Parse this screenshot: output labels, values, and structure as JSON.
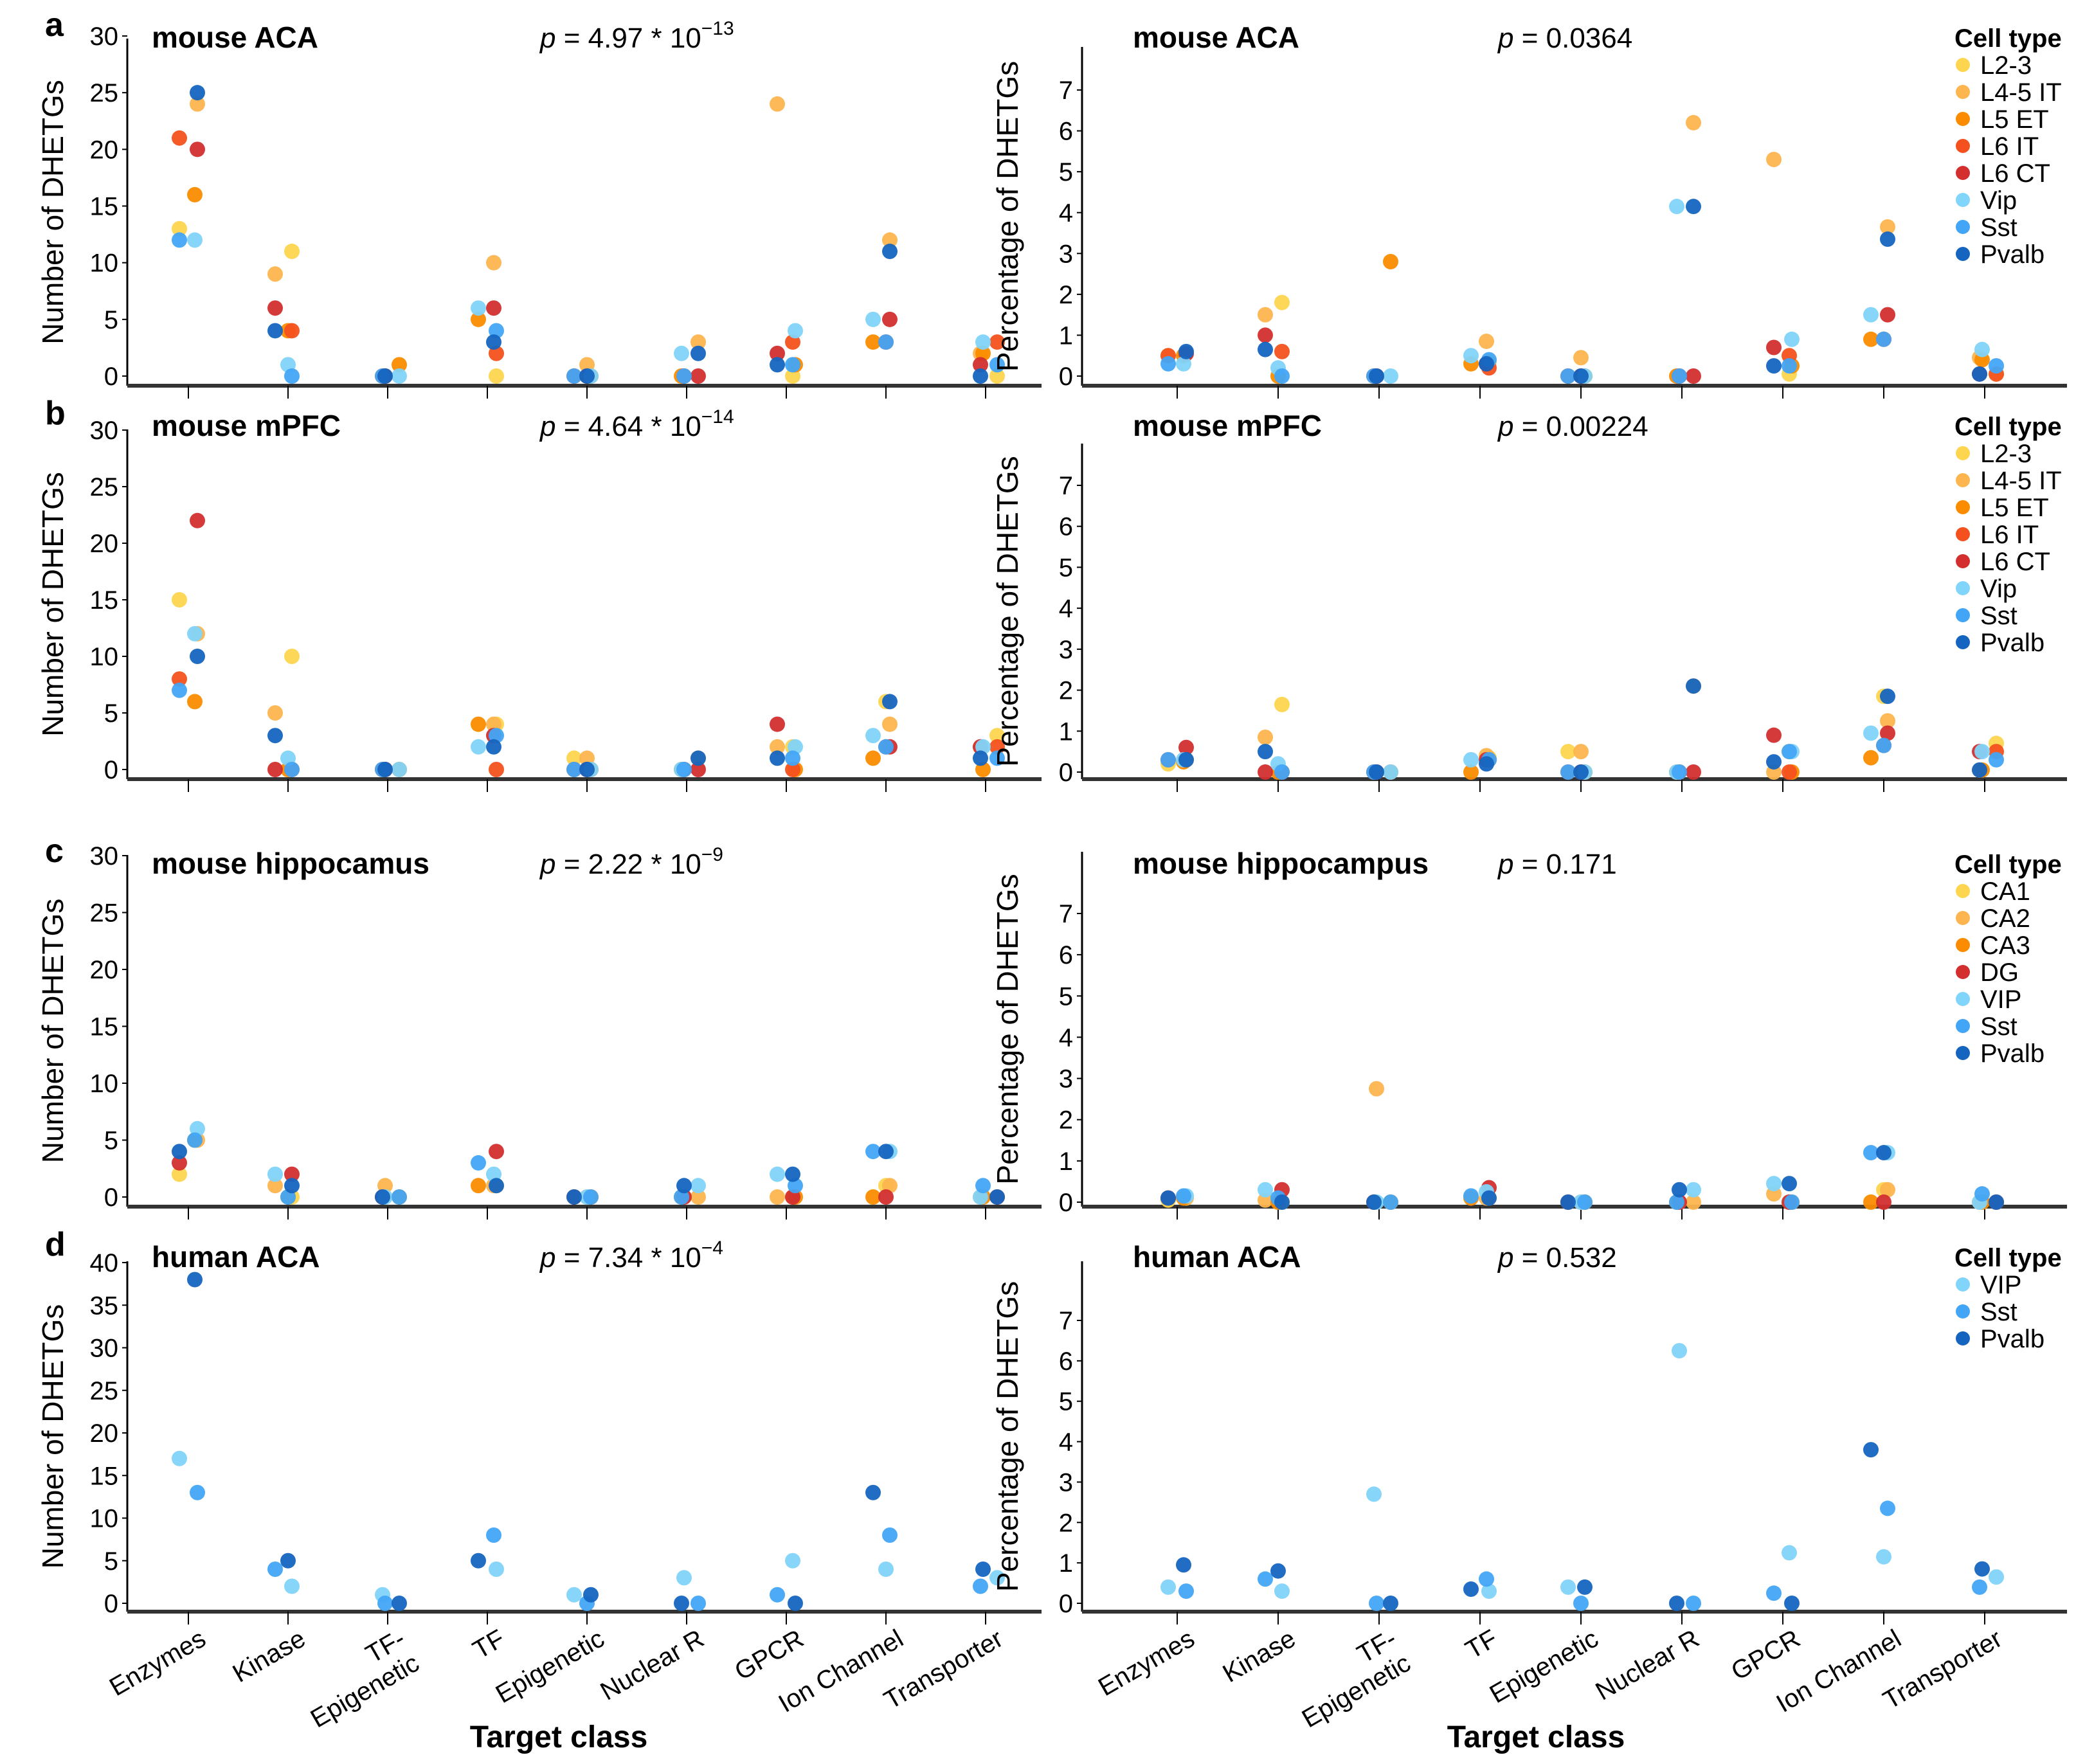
{
  "figure": {
    "panel_labels": [
      "a",
      "b",
      "c",
      "d"
    ],
    "x_axis_title": "Target class",
    "legend_title": "Cell type"
  },
  "colors": {
    "L2-3": "#FDD54F",
    "L4-5 IT": "#FDB54F",
    "L5 ET": "#FB8C00",
    "L6 IT": "#F4511E",
    "L6 CT": "#D32F2F",
    "Vip": "#81D4FA",
    "Sst": "#42A5F5",
    "Pvalb": "#1565C0",
    "CA1": "#FDD54F",
    "CA2": "#FDB54F",
    "CA3": "#FB8C00",
    "DG": "#D32F2F",
    "VIP": "#81D4FA"
  },
  "chart_data": [
    {
      "type": "scatter",
      "row": "a",
      "title": "mouse ACA",
      "p_label": "p",
      "p_text": " = 4.97 * 10",
      "p_exp": "−13",
      "ylabel": "Number of DHETGs",
      "ylim": [
        0,
        30
      ],
      "yticks": [
        0,
        5,
        10,
        15,
        20,
        25,
        30
      ],
      "show_legend": false,
      "categories": [
        "Enzymes",
        "Kinase",
        "TF-\nEpigenetic",
        "TF",
        "Epigenetic",
        "Nuclear R",
        "GPCR",
        "Ion Channel",
        "Transporter"
      ],
      "series": [
        {
          "name": "L2-3",
          "values": [
            13,
            11,
            0,
            0,
            0,
            0,
            0,
            3,
            0
          ]
        },
        {
          "name": "L4-5 IT",
          "values": [
            24,
            9,
            0,
            10,
            1,
            3,
            24,
            12,
            2
          ]
        },
        {
          "name": "L5 ET",
          "values": [
            16,
            4,
            1,
            5,
            0,
            0,
            1,
            3,
            2
          ]
        },
        {
          "name": "L6 IT",
          "values": [
            21,
            4,
            0,
            2,
            0,
            0,
            3,
            3,
            3
          ]
        },
        {
          "name": "L6 CT",
          "values": [
            20,
            6,
            0,
            6,
            0,
            0,
            2,
            5,
            1
          ]
        },
        {
          "name": "Vip",
          "values": [
            12,
            1,
            0,
            6,
            0,
            2,
            4,
            5,
            3
          ]
        },
        {
          "name": "Sst",
          "values": [
            12,
            0,
            0,
            4,
            0,
            0,
            1,
            3,
            1
          ]
        },
        {
          "name": "Pvalb",
          "values": [
            25,
            4,
            0,
            3,
            0,
            2,
            1,
            11,
            0
          ]
        }
      ]
    },
    {
      "type": "scatter",
      "row": "a",
      "title": "mouse ACA",
      "p_label": "p",
      "p_text": " = 0.0364",
      "p_exp": "",
      "ylabel": "Percentage of DHETGs",
      "ylim": [
        0,
        7
      ],
      "yticks": [
        0,
        1,
        2,
        3,
        4,
        5,
        6,
        7
      ],
      "show_legend": true,
      "legend": [
        "L2-3",
        "L4-5 IT",
        "L5 ET",
        "L6 IT",
        "L6 CT",
        "Vip",
        "Sst",
        "Pvalb"
      ],
      "categories": [
        "Enzymes",
        "Kinase",
        "TF-\nEpigenetic",
        "TF",
        "Epigenetic",
        "Nuclear R",
        "GPCR",
        "Ion Channel",
        "Transporter"
      ],
      "series": [
        {
          "name": "L2-3",
          "values": [
            0.5,
            1.8,
            0,
            0.35,
            0,
            0,
            0.05,
            0.9,
            0.05
          ]
        },
        {
          "name": "L4-5 IT",
          "values": [
            0.55,
            1.5,
            0,
            0.85,
            0.45,
            6.2,
            5.3,
            3.65,
            0.45
          ]
        },
        {
          "name": "L5 ET",
          "values": [
            0.5,
            0,
            2.8,
            0.3,
            0,
            0,
            0.25,
            0.9,
            0.4
          ]
        },
        {
          "name": "L6 IT",
          "values": [
            0.5,
            0.6,
            0,
            0.2,
            0,
            0,
            0.5,
            0.9,
            0.05
          ]
        },
        {
          "name": "L6 CT",
          "values": [
            0.55,
            1.0,
            0,
            0.3,
            0,
            0,
            0.7,
            1.5,
            0.05
          ]
        },
        {
          "name": "Vip",
          "values": [
            0.3,
            0.2,
            0,
            0.5,
            0,
            4.15,
            0.9,
            1.5,
            0.65
          ]
        },
        {
          "name": "Sst",
          "values": [
            0.3,
            0,
            0,
            0.4,
            0,
            0,
            0.25,
            0.9,
            0.25
          ]
        },
        {
          "name": "Pvalb",
          "values": [
            0.6,
            0.65,
            0,
            0.3,
            0,
            4.15,
            0.25,
            3.35,
            0.05
          ]
        }
      ]
    },
    {
      "type": "scatter",
      "row": "b",
      "title": "mouse mPFC",
      "p_label": "p",
      "p_text": " = 4.64 * 10",
      "p_exp": "−14",
      "ylabel": "Number of DHETGs",
      "ylim": [
        0,
        30
      ],
      "yticks": [
        0,
        5,
        10,
        15,
        20,
        25,
        30
      ],
      "show_legend": false,
      "categories": [
        "Enzymes",
        "Kinase",
        "TF-\nEpigenetic",
        "TF",
        "Epigenetic",
        "Nuclear R",
        "GPCR",
        "Ion Channel",
        "Transporter"
      ],
      "series": [
        {
          "name": "L2-3",
          "values": [
            15,
            10,
            0,
            4,
            1,
            0,
            2,
            6,
            3
          ]
        },
        {
          "name": "L4-5 IT",
          "values": [
            12,
            5,
            0,
            4,
            1,
            1,
            2,
            4,
            2
          ]
        },
        {
          "name": "L5 ET",
          "values": [
            6,
            0,
            0,
            4,
            0,
            0,
            0,
            1,
            0
          ]
        },
        {
          "name": "L6 IT",
          "values": [
            8,
            0,
            0,
            0,
            0,
            0,
            0,
            2,
            2
          ]
        },
        {
          "name": "L6 CT",
          "values": [
            22,
            0,
            0,
            3,
            0,
            0,
            4,
            2,
            2
          ]
        },
        {
          "name": "Vip",
          "values": [
            12,
            1,
            0,
            2,
            0,
            0,
            2,
            3,
            2
          ]
        },
        {
          "name": "Sst",
          "values": [
            7,
            0,
            0,
            3,
            0,
            0,
            1,
            2,
            1
          ]
        },
        {
          "name": "Pvalb",
          "values": [
            10,
            3,
            0,
            2,
            0,
            1,
            1,
            6,
            1
          ]
        }
      ]
    },
    {
      "type": "scatter",
      "row": "b",
      "title": "mouse mPFC",
      "p_label": "p",
      "p_text": " = 0.00224",
      "p_exp": "",
      "ylabel": "Percentage of DHETGs",
      "ylim": [
        0,
        7
      ],
      "yticks": [
        0,
        1,
        2,
        3,
        4,
        5,
        6,
        7
      ],
      "show_legend": true,
      "legend": [
        "L2-3",
        "L4-5 IT",
        "L5 ET",
        "L6 IT",
        "L6 CT",
        "Vip",
        "Sst",
        "Pvalb"
      ],
      "categories": [
        "Enzymes",
        "Kinase",
        "TF-\nEpigenetic",
        "TF",
        "Epigenetic",
        "Nuclear R",
        "GPCR",
        "Ion Channel",
        "Transporter"
      ],
      "series": [
        {
          "name": "L2-3",
          "values": [
            0.2,
            1.65,
            0,
            0.35,
            0.5,
            0,
            0.5,
            1.85,
            0.7
          ]
        },
        {
          "name": "L4-5 IT",
          "values": [
            0.3,
            0.85,
            0,
            0.4,
            0.5,
            2.1,
            0,
            1.25,
            0.05
          ]
        },
        {
          "name": "L5 ET",
          "values": [
            0.25,
            0,
            0,
            0,
            0,
            0,
            0,
            0.35,
            0.05
          ]
        },
        {
          "name": "L6 IT",
          "values": [
            0.3,
            0,
            0,
            0.3,
            0,
            0,
            0,
            0.65,
            0.5
          ]
        },
        {
          "name": "L6 CT",
          "values": [
            0.6,
            0,
            0,
            0.3,
            0,
            0,
            0.9,
            0.95,
            0.5
          ]
        },
        {
          "name": "Vip",
          "values": [
            0.3,
            0.2,
            0,
            0.3,
            0,
            0,
            0.5,
            0.95,
            0.5
          ]
        },
        {
          "name": "Sst",
          "values": [
            0.3,
            0,
            0,
            0.3,
            0,
            0,
            0.5,
            0.65,
            0.3
          ]
        },
        {
          "name": "Pvalb",
          "values": [
            0.3,
            0.5,
            0,
            0.2,
            0,
            2.1,
            0.25,
            1.85,
            0.05
          ]
        }
      ]
    },
    {
      "type": "scatter",
      "row": "c",
      "title": "mouse hippocamus",
      "p_label": "p",
      "p_text": " = 2.22 * 10",
      "p_exp": "−9",
      "ylabel": "Number of DHETGs",
      "ylim": [
        0,
        30
      ],
      "yticks": [
        0,
        5,
        10,
        15,
        20,
        25,
        30
      ],
      "show_legend": false,
      "categories": [
        "Enzymes",
        "Kinase",
        "TF-\nEpigenetic",
        "TF",
        "Epigenetic",
        "Nuclear R",
        "GPCR",
        "Ion Channel",
        "Transporter"
      ],
      "series": [
        {
          "name": "CA1",
          "values": [
            2,
            0,
            0,
            1,
            0,
            0,
            0,
            1,
            0
          ]
        },
        {
          "name": "CA2",
          "values": [
            5,
            1,
            1,
            1,
            0,
            0,
            0,
            1,
            0
          ]
        },
        {
          "name": "CA3",
          "values": [
            5,
            0,
            0,
            1,
            0,
            0,
            0,
            0,
            0
          ]
        },
        {
          "name": "DG",
          "values": [
            3,
            2,
            0,
            4,
            0,
            0,
            0,
            0,
            0
          ]
        },
        {
          "name": "VIP",
          "values": [
            6,
            2,
            0,
            2,
            0,
            1,
            2,
            4,
            0
          ]
        },
        {
          "name": "Sst",
          "values": [
            5,
            0,
            0,
            3,
            0,
            0,
            1,
            4,
            1
          ]
        },
        {
          "name": "Pvalb",
          "values": [
            4,
            1,
            0,
            1,
            0,
            1,
            2,
            4,
            0
          ]
        }
      ]
    },
    {
      "type": "scatter",
      "row": "c",
      "title": "mouse hippocampus",
      "p_label": "p",
      "p_text": " = 0.171",
      "p_exp": "",
      "ylabel": "Percentage of DHETGs",
      "ylim": [
        0,
        7
      ],
      "yticks": [
        0,
        1,
        2,
        3,
        4,
        5,
        6,
        7
      ],
      "show_legend": true,
      "legend": [
        "CA1",
        "CA2",
        "CA3",
        "DG",
        "VIP",
        "Sst",
        "Pvalb"
      ],
      "categories": [
        "Enzymes",
        "Kinase",
        "TF-\nEpigenetic",
        "TF",
        "Epigenetic",
        "Nuclear R",
        "GPCR",
        "Ion Channel",
        "Transporter"
      ],
      "series": [
        {
          "name": "CA1",
          "values": [
            0.05,
            0,
            0,
            0.1,
            0,
            0,
            0,
            0.3,
            0
          ]
        },
        {
          "name": "CA2",
          "values": [
            0.1,
            0.05,
            2.75,
            0.1,
            0,
            0,
            0.2,
            0.3,
            0
          ]
        },
        {
          "name": "CA3",
          "values": [
            0.1,
            0,
            0,
            0.1,
            0,
            0,
            0,
            0,
            0
          ]
        },
        {
          "name": "DG",
          "values": [
            0.1,
            0.3,
            0,
            0.35,
            0,
            0,
            0,
            0,
            0
          ]
        },
        {
          "name": "VIP",
          "values": [
            0.15,
            0.3,
            0,
            0.25,
            0,
            0.3,
            0.45,
            1.2,
            0
          ]
        },
        {
          "name": "Sst",
          "values": [
            0.15,
            0.1,
            0,
            0.15,
            0,
            0,
            0,
            1.2,
            0.2
          ]
        },
        {
          "name": "Pvalb",
          "values": [
            0.1,
            0,
            0,
            0.1,
            0,
            0.3,
            0.45,
            1.2,
            0
          ]
        }
      ]
    },
    {
      "type": "scatter",
      "row": "d",
      "title": "human ACA",
      "p_label": "p",
      "p_text": " = 7.34 * 10",
      "p_exp": "−4",
      "ylabel": "Number of DHETGs",
      "ylim": [
        0,
        40
      ],
      "yticks": [
        0,
        5,
        10,
        15,
        20,
        25,
        30,
        35,
        40
      ],
      "show_legend": false,
      "categories": [
        "Enzymes",
        "Kinase",
        "TF-\nEpigenetic",
        "TF",
        "Epigenetic",
        "Nuclear R",
        "GPCR",
        "Ion Channel",
        "Transporter"
      ],
      "series": [
        {
          "name": "VIP",
          "values": [
            17,
            2,
            1,
            4,
            1,
            3,
            5,
            4,
            3
          ]
        },
        {
          "name": "Sst",
          "values": [
            13,
            4,
            0,
            8,
            0,
            0,
            1,
            8,
            2
          ]
        },
        {
          "name": "Pvalb",
          "values": [
            38,
            5,
            0,
            5,
            1,
            0,
            0,
            13,
            4
          ]
        }
      ]
    },
    {
      "type": "scatter",
      "row": "d",
      "title": "human ACA",
      "p_label": "p",
      "p_text": " = 0.532",
      "p_exp": "",
      "ylabel": "Percentage of DHETGs",
      "ylim": [
        0,
        7
      ],
      "yticks": [
        0,
        1,
        2,
        3,
        4,
        5,
        6,
        7
      ],
      "show_legend": true,
      "legend": [
        "VIP",
        "Sst",
        "Pvalb"
      ],
      "categories": [
        "Enzymes",
        "Kinase",
        "TF-\nEpigenetic",
        "TF",
        "Epigenetic",
        "Nuclear R",
        "GPCR",
        "Ion Channel",
        "Transporter"
      ],
      "series": [
        {
          "name": "VIP",
          "values": [
            0.4,
            0.3,
            2.7,
            0.3,
            0.4,
            6.25,
            1.25,
            1.15,
            0.65
          ]
        },
        {
          "name": "Sst",
          "values": [
            0.3,
            0.6,
            0,
            0.6,
            0,
            0,
            0.25,
            2.35,
            0.4
          ]
        },
        {
          "name": "Pvalb",
          "values": [
            0.95,
            0.8,
            0,
            0.35,
            0.4,
            0,
            0,
            3.8,
            0.85
          ]
        }
      ]
    }
  ]
}
